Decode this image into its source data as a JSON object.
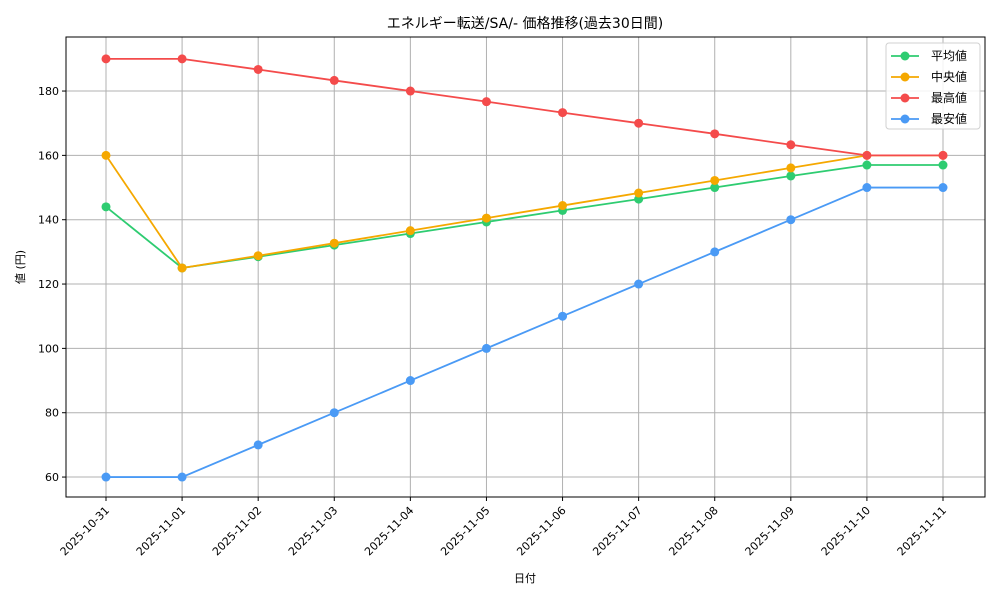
{
  "chart_data": {
    "type": "line",
    "title": "エネルギー転送/SA/- 価格推移(過去30日間)",
    "xlabel": "日付",
    "ylabel": "値 (円)",
    "categories": [
      "2025-10-31",
      "2025-11-01",
      "2025-11-02",
      "2025-11-03",
      "2025-11-04",
      "2025-11-05",
      "2025-11-06",
      "2025-11-07",
      "2025-11-08",
      "2025-11-09",
      "2025-11-10",
      "2025-11-11"
    ],
    "ylim": [
      53.8,
      196.8
    ],
    "yticks": [
      60,
      80,
      100,
      120,
      140,
      160,
      180
    ],
    "grid": true,
    "legend_position": "upper right",
    "series": [
      {
        "name": "平均値",
        "color": "#2ecc71",
        "values": [
          144,
          125,
          128.5,
          132.1,
          135.7,
          139.3,
          142.9,
          146.4,
          150,
          153.6,
          157,
          157
        ]
      },
      {
        "name": "中央値",
        "color": "#f5a800",
        "values": [
          160,
          125,
          128.8,
          132.7,
          136.6,
          140.5,
          144.4,
          148.3,
          152.2,
          156.1,
          160,
          160
        ]
      },
      {
        "name": "最高値",
        "color": "#f44b4b",
        "values": [
          190,
          190,
          186.7,
          183.3,
          180,
          176.7,
          173.3,
          170,
          166.7,
          163.3,
          160,
          160
        ]
      },
      {
        "name": "最安値",
        "color": "#4a9af5",
        "values": [
          60,
          60,
          70,
          80,
          90,
          100,
          110,
          120,
          130,
          140,
          150,
          150
        ]
      }
    ]
  }
}
